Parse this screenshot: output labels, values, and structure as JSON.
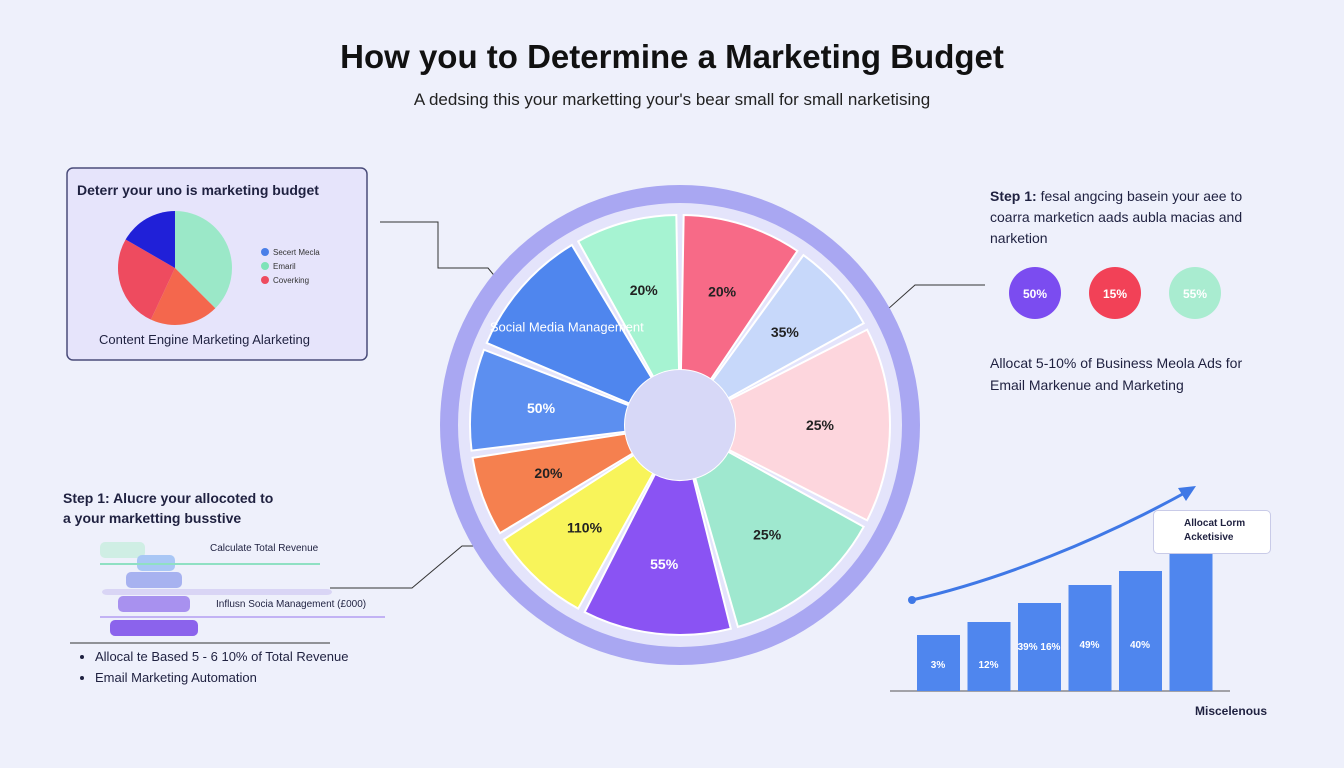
{
  "header": {
    "title": "How you to Determine a Marketing Budget",
    "subtitle": "A dedsing this your marketting your's bear small for small narketising"
  },
  "left_card": {
    "title": "Deterr your uno is marketing budget",
    "legend": [
      "Secert Mecla",
      "Emaril",
      "Coverking"
    ],
    "caption": "Content Engine Marketing Alarketing"
  },
  "donut": {
    "labels": [
      "20%",
      "20%",
      "35%",
      "25%",
      "25%",
      "55%",
      "110%",
      "20%",
      "50%",
      "Social Media Management"
    ]
  },
  "right_step": {
    "heading": "Step 1:",
    "text": "fesal angcing basein your aee to coarra marketicn aads aubla macias and narketion",
    "circles": [
      "50%",
      "15%",
      "55%"
    ],
    "note": "Allocat 5-10% of Business Meola Ads for Email Markenue and Marketing"
  },
  "left_step": {
    "heading": "Step 1:",
    "text": "Alucre your allocoted to a your marketting busstive",
    "labels": [
      "Calculate Total Revenue",
      "Influsn Socia Management (£000)"
    ],
    "bullets": [
      "Allocal te Based 5 - 6 10% of Total Revenue",
      "Email Marketing Automation"
    ]
  },
  "bar_panel": {
    "labels": [
      "3%",
      "12%",
      "39% 16%",
      "49%",
      "40%"
    ],
    "callout": "Allocat Lorm Acketisive",
    "x_label": "Miscelenous"
  }
}
